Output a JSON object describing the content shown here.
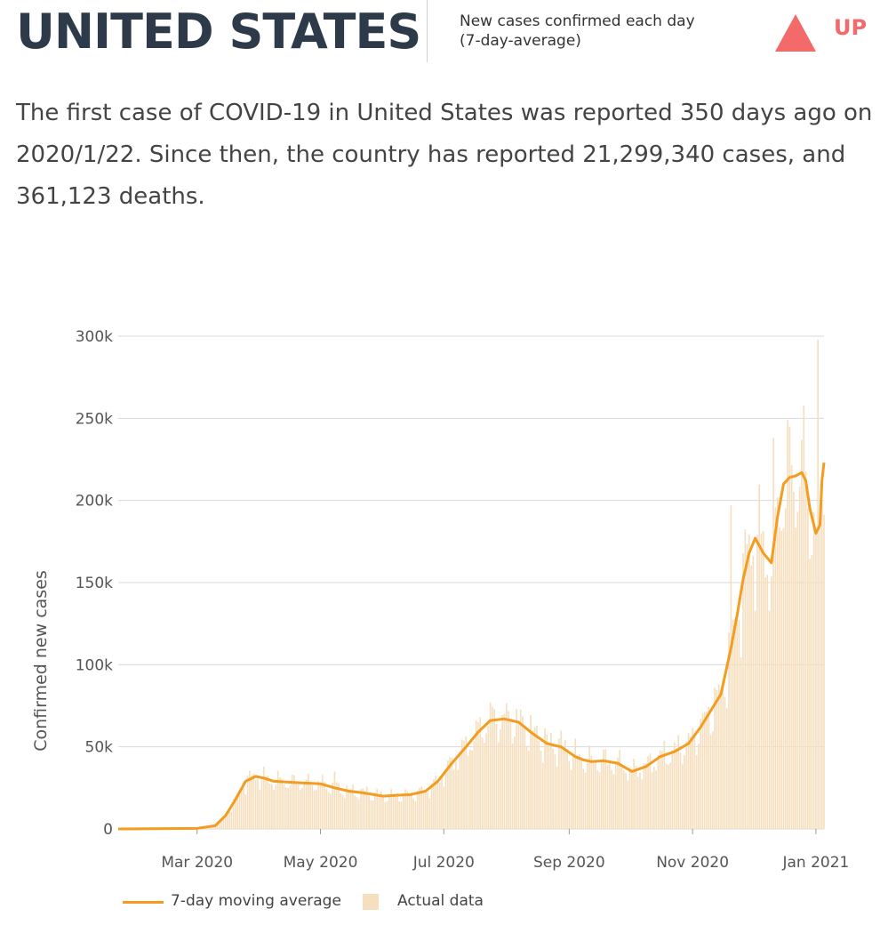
{
  "header": {
    "country": "UNITED STATES",
    "metric_label_line1": "New cases confirmed each day",
    "metric_label_line2": "(7-day-average)",
    "trend": "UP",
    "trend_color": "#f26a6a"
  },
  "summary": "The first case of COVID-19 in United States was reported 350 days ago on 2020/1/22. Since then, the country has reported 21,299,340 cases, and 361,123 deaths.",
  "legend": {
    "line_label": "7-day moving average",
    "bar_label": "Actual data"
  },
  "colors": {
    "line": "#f39c1f",
    "bars": "#f6dfbf",
    "grid": "#d9d9d9",
    "title": "#2c3a4a"
  },
  "chart_data": {
    "type": "line",
    "ylabel": "Confirmed new cases",
    "ylim": [
      0,
      300000
    ],
    "y_ticks": [
      0,
      50000,
      100000,
      150000,
      200000,
      250000,
      300000
    ],
    "y_tick_labels": [
      "0",
      "50k",
      "100k",
      "150k",
      "200k",
      "250k",
      "300k"
    ],
    "x_start": "2020-01-22",
    "x_end": "2021-01-05",
    "x_ticks": [
      "2020-03-01",
      "2020-05-01",
      "2020-07-01",
      "2020-09-01",
      "2020-11-01",
      "2021-01-01"
    ],
    "x_tick_labels": [
      "Mar 2020",
      "May 2020",
      "Jul 2020",
      "Sep 2020",
      "Nov 2020",
      "Jan 2021"
    ],
    "grid": true,
    "series": [
      {
        "name": "7-day moving average",
        "x": [
          "2020-01-22",
          "2020-03-01",
          "2020-03-10",
          "2020-03-15",
          "2020-03-20",
          "2020-03-25",
          "2020-03-30",
          "2020-04-03",
          "2020-04-08",
          "2020-04-15",
          "2020-04-22",
          "2020-05-01",
          "2020-05-08",
          "2020-05-15",
          "2020-05-22",
          "2020-06-01",
          "2020-06-08",
          "2020-06-15",
          "2020-06-22",
          "2020-06-28",
          "2020-07-05",
          "2020-07-12",
          "2020-07-18",
          "2020-07-24",
          "2020-07-31",
          "2020-08-07",
          "2020-08-14",
          "2020-08-21",
          "2020-08-28",
          "2020-09-04",
          "2020-09-08",
          "2020-09-12",
          "2020-09-18",
          "2020-09-25",
          "2020-10-02",
          "2020-10-09",
          "2020-10-16",
          "2020-10-23",
          "2020-10-30",
          "2020-11-05",
          "2020-11-10",
          "2020-11-15",
          "2020-11-20",
          "2020-11-23",
          "2020-11-26",
          "2020-11-29",
          "2020-12-02",
          "2020-12-06",
          "2020-12-10",
          "2020-12-13",
          "2020-12-16",
          "2020-12-19",
          "2020-12-22",
          "2020-12-25",
          "2020-12-27",
          "2020-12-29",
          "2021-01-01",
          "2021-01-03",
          "2021-01-04",
          "2021-01-05"
        ],
        "y": [
          0,
          300,
          2000,
          8000,
          18000,
          29000,
          32000,
          31000,
          29000,
          28500,
          28000,
          27500,
          25000,
          23000,
          22000,
          20000,
          20500,
          21000,
          23000,
          29000,
          40000,
          50000,
          59000,
          66000,
          67000,
          65000,
          58000,
          52000,
          50000,
          44000,
          42000,
          41000,
          41500,
          40000,
          35000,
          38000,
          44000,
          47000,
          52000,
          62000,
          72000,
          82000,
          110000,
          130000,
          152000,
          168000,
          177000,
          168000,
          162000,
          190000,
          210000,
          214000,
          215000,
          217000,
          212000,
          195000,
          180000,
          185000,
          212000,
          223000
        ]
      }
    ],
    "bar_series": {
      "name": "Actual data",
      "noise": 0.12,
      "spikes": [
        {
          "x": "2021-01-02",
          "y": 298000
        },
        {
          "x": "2020-12-18",
          "y": 249000
        },
        {
          "x": "2020-12-11",
          "y": 238000
        },
        {
          "x": "2020-11-20",
          "y": 197000
        },
        {
          "x": "2020-07-24",
          "y": 77000
        },
        {
          "x": "2020-05-08",
          "y": 35000
        }
      ]
    }
  }
}
